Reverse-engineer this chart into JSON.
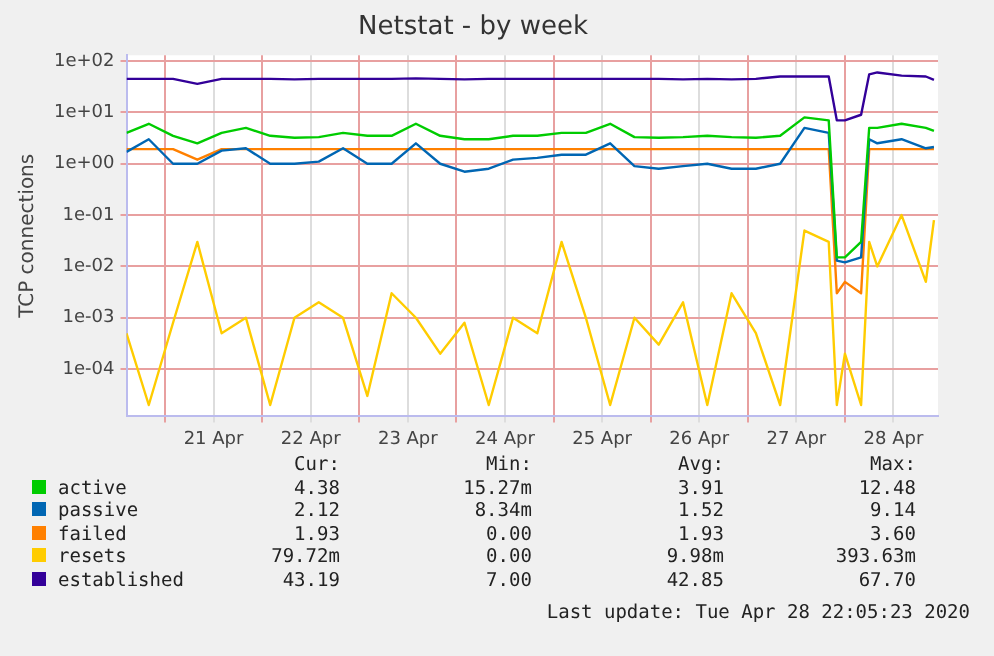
{
  "chart_data": {
    "type": "line",
    "title": "Netstat - by week",
    "ylabel": "TCP connections",
    "x": [
      "2020-04-20T14:30",
      "2020-04-20T20:00",
      "2020-04-21T02:00",
      "2020-04-21T08:00",
      "2020-04-21T14:00",
      "2020-04-21T20:00",
      "2020-04-22T02:00",
      "2020-04-22T08:00",
      "2020-04-22T14:00",
      "2020-04-22T20:00",
      "2020-04-23T02:00",
      "2020-04-23T08:00",
      "2020-04-23T14:00",
      "2020-04-23T20:00",
      "2020-04-24T02:00",
      "2020-04-24T08:00",
      "2020-04-24T14:00",
      "2020-04-24T20:00",
      "2020-04-25T02:00",
      "2020-04-25T08:00",
      "2020-04-25T14:00",
      "2020-04-25T20:00",
      "2020-04-26T02:00",
      "2020-04-26T08:00",
      "2020-04-26T14:00",
      "2020-04-26T20:00",
      "2020-04-27T02:00",
      "2020-04-27T08:00",
      "2020-04-27T14:00",
      "2020-04-27T20:00",
      "2020-04-27T22:00",
      "2020-04-28T00:00",
      "2020-04-28T04:00",
      "2020-04-28T06:00",
      "2020-04-28T08:00",
      "2020-04-28T14:00",
      "2020-04-28T20:00",
      "2020-04-28T22:00"
    ],
    "series": [
      {
        "name": "active",
        "color": "#00cc00",
        "values": [
          4,
          6,
          3.5,
          2.5,
          4,
          5,
          3.5,
          3.2,
          3.3,
          4,
          3.5,
          3.5,
          6,
          3.5,
          3,
          3,
          3.5,
          3.5,
          4,
          4,
          6,
          3.3,
          3.2,
          3.3,
          3.5,
          3.3,
          3.2,
          3.5,
          8,
          7,
          0.015,
          0.015,
          0.03,
          5,
          5,
          6,
          5,
          4.38
        ]
      },
      {
        "name": "passive",
        "color": "#0066b3",
        "values": [
          1.7,
          3,
          1,
          1,
          1.8,
          2,
          1,
          1,
          1.1,
          2,
          1,
          1,
          2.5,
          1,
          0.7,
          0.8,
          1.2,
          1.3,
          1.5,
          1.5,
          2.5,
          0.9,
          0.8,
          0.9,
          1,
          0.8,
          0.8,
          1,
          5,
          4,
          0.013,
          0.012,
          0.015,
          3,
          2.5,
          3,
          2,
          2.12
        ]
      },
      {
        "name": "failed",
        "color": "#ff8000",
        "values": [
          1.93,
          1.93,
          1.93,
          1.2,
          1.93,
          1.93,
          1.93,
          1.93,
          1.93,
          1.93,
          1.93,
          1.93,
          1.93,
          1.93,
          1.93,
          1.93,
          1.93,
          1.93,
          1.93,
          1.93,
          1.93,
          1.93,
          1.93,
          1.93,
          1.93,
          1.93,
          1.93,
          1.93,
          1.93,
          1.93,
          0.003,
          0.005,
          0.003,
          1.93,
          1.93,
          1.93,
          1.93,
          1.93
        ]
      },
      {
        "name": "resets",
        "color": "#ffcc00",
        "values": [
          0.0005,
          2e-05,
          0.0008,
          0.03,
          0.0005,
          0.001,
          2e-05,
          0.001,
          0.002,
          0.001,
          3e-05,
          0.003,
          0.001,
          0.0002,
          0.0008,
          2e-05,
          0.001,
          0.0005,
          0.03,
          0.001,
          2e-05,
          0.001,
          0.0003,
          0.002,
          2e-05,
          0.003,
          0.0005,
          2e-05,
          0.05,
          0.03,
          2e-05,
          0.0002,
          2e-05,
          0.03,
          0.01,
          0.1,
          0.005,
          0.07972
        ]
      },
      {
        "name": "established",
        "color": "#330099",
        "values": [
          45,
          45,
          45,
          36,
          45,
          45,
          45,
          44,
          45,
          45,
          45,
          45,
          46,
          45,
          44,
          45,
          45,
          45,
          45,
          45,
          45,
          45,
          45,
          44,
          45,
          44,
          45,
          50,
          50,
          50,
          7,
          7,
          9,
          55,
          60,
          52,
          50,
          43.19
        ]
      }
    ],
    "log": "y",
    "ylim": [
      1.2e-05,
      130
    ],
    "yticks": [
      {
        "value": 0.0001,
        "label": "1e-04"
      },
      {
        "value": 0.001,
        "label": "1e-03"
      },
      {
        "value": 0.01,
        "label": "1e-02"
      },
      {
        "value": 0.1,
        "label": "1e-01"
      },
      {
        "value": 1,
        "label": "1e+00"
      },
      {
        "value": 10,
        "label": "1e+01"
      },
      {
        "value": 100,
        "label": "1e+02"
      }
    ],
    "xlim": [
      "2020-04-20T14:30",
      "2020-04-28T23:00"
    ],
    "xticks": [
      {
        "value": "2020-04-21T00:00",
        "label": null
      },
      {
        "value": "2020-04-21T12:00",
        "label": "21 Apr"
      },
      {
        "value": "2020-04-22T00:00",
        "label": null
      },
      {
        "value": "2020-04-22T12:00",
        "label": "22 Apr"
      },
      {
        "value": "2020-04-23T00:00",
        "label": null
      },
      {
        "value": "2020-04-23T12:00",
        "label": "23 Apr"
      },
      {
        "value": "2020-04-24T00:00",
        "label": null
      },
      {
        "value": "2020-04-24T12:00",
        "label": "24 Apr"
      },
      {
        "value": "2020-04-25T00:00",
        "label": null
      },
      {
        "value": "2020-04-25T12:00",
        "label": "25 Apr"
      },
      {
        "value": "2020-04-26T00:00",
        "label": null
      },
      {
        "value": "2020-04-26T12:00",
        "label": "26 Apr"
      },
      {
        "value": "2020-04-27T00:00",
        "label": null
      },
      {
        "value": "2020-04-27T12:00",
        "label": "27 Apr"
      },
      {
        "value": "2020-04-28T00:00",
        "label": null
      },
      {
        "value": "2020-04-28T12:00",
        "label": "28 Apr"
      }
    ],
    "grid": true,
    "legend": "bottom",
    "marker": "none",
    "line_style": "solid",
    "annotations": [
      "Cur:",
      "Min:",
      "Avg:",
      "Max:",
      "4.38",
      "15.27m",
      "3.91",
      "12.48",
      "2.12",
      "8.34m",
      "1.52",
      "9.14",
      "1.93",
      "0.00",
      "1.93",
      "3.60",
      "79.72m",
      "0.00",
      "9.98m",
      "393.63m",
      "43.19",
      "7.00",
      "42.85",
      "67.70",
      "Last update: Tue Apr 28 22:05:23 2020"
    ]
  }
}
